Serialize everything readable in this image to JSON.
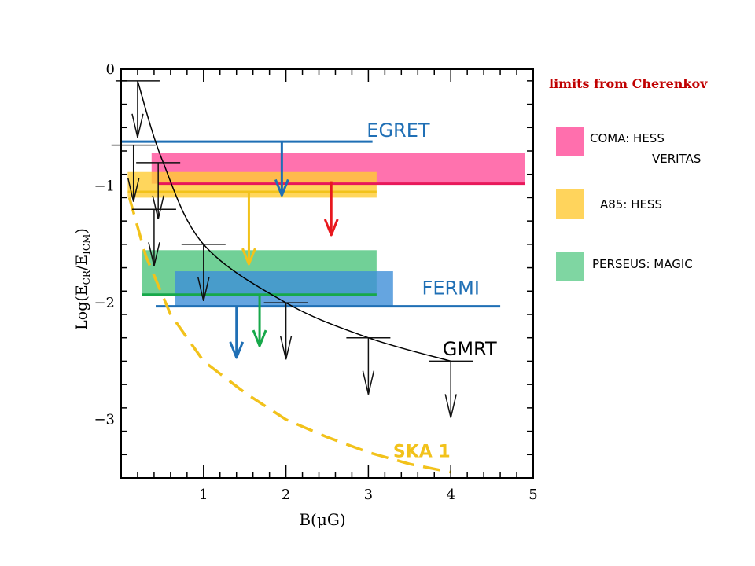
{
  "chart_data": {
    "type": "line",
    "title": "",
    "xlabel": "B(μG)",
    "ylabel": "Log(E_CR/E_ICM)",
    "ylabel_parts": [
      "Log(E",
      "CR",
      "/E",
      "ICM",
      ")"
    ],
    "xlim": [
      0.0,
      5.0
    ],
    "ylim": [
      -3.5,
      0.0
    ],
    "x_ticks": [
      1,
      2,
      3,
      4,
      5
    ],
    "y_ticks": [
      0,
      -1,
      -2,
      -3
    ],
    "x_tick_labels": [
      "1",
      "2",
      "3",
      "4",
      "5"
    ],
    "y_tick_labels": [
      "0",
      "−1",
      "−2",
      "−3"
    ],
    "series": [
      {
        "name": "GMRT",
        "color": "#000000",
        "x": [
          0.2,
          0.5,
          1.0,
          2.0,
          3.0,
          4.0
        ],
        "y": [
          -0.1,
          -0.78,
          -1.5,
          -2.0,
          -2.3,
          -2.5
        ]
      },
      {
        "name": "SKA 1",
        "color": "#f2c21b",
        "dashed": true,
        "x": [
          0.1,
          0.3,
          0.6,
          1.0,
          1.5,
          2.0,
          2.5,
          3.0,
          3.5,
          4.0
        ],
        "y": [
          -1.1,
          -1.6,
          -2.1,
          -2.5,
          -2.77,
          -3.0,
          -3.15,
          -3.28,
          -3.38,
          -3.45
        ]
      }
    ],
    "radio_upper_limits": [
      {
        "x": 0.15,
        "y": -0.65
      },
      {
        "x": 0.2,
        "y": -0.1
      },
      {
        "x": 0.4,
        "y": -1.2
      },
      {
        "x": 0.45,
        "y": -0.8
      },
      {
        "x": 1.0,
        "y": -1.5
      },
      {
        "x": 2.0,
        "y": -2.0
      },
      {
        "x": 3.0,
        "y": -2.3
      },
      {
        "x": 4.0,
        "y": -2.5
      }
    ],
    "gamma_limits": [
      {
        "name": "EGRET",
        "color": "#1f6fb5",
        "x_range": [
          0.0,
          3.05
        ],
        "y": -0.62,
        "arrow_x": 1.95,
        "arrow_to": -1.08
      },
      {
        "name": "FERMI",
        "color": "#1f6fb5",
        "x_range": [
          0.42,
          4.6
        ],
        "y": -2.03,
        "arrow_x": 1.4,
        "arrow_to": -2.47
      },
      {
        "name": "COMA: HESS VERITAS",
        "color": "#ff4f9a",
        "x_range": [
          0.37,
          4.9
        ],
        "y_range": [
          -0.72,
          -0.98
        ],
        "line_y": -0.98,
        "line_x_range": [
          0.45,
          4.9
        ],
        "line_color": "#e8185a",
        "arrow_x": 2.55,
        "arrow_from": -0.96,
        "arrow_to": -1.42,
        "arrow_color": "#e8181e"
      },
      {
        "name": "A85: HESS",
        "color": "#ffcc33",
        "x_range": [
          0.08,
          3.1
        ],
        "y_range": [
          -0.88,
          -1.1
        ],
        "line_y": -1.05,
        "line_x_range": [
          0.08,
          3.1
        ],
        "line_color": "#f2c21b",
        "arrow_x": 1.55,
        "arrow_from": -1.05,
        "arrow_to": -1.67,
        "arrow_color": "#f2c21b"
      },
      {
        "name": "PERSEUS: MAGIC",
        "color": "#4dc47d",
        "x_range": [
          0.25,
          3.1
        ],
        "y_range": [
          -1.55,
          -1.93
        ],
        "line_y": -1.93,
        "line_x_range": [
          0.25,
          3.1
        ],
        "line_color": "#17a84a",
        "arrow_x": 1.68,
        "arrow_from": -1.93,
        "arrow_to": -2.37,
        "arrow_color": "#17a84a"
      },
      {
        "name": "FERMI box",
        "color": "#3f8fd8",
        "x_range": [
          0.65,
          3.3
        ],
        "y_range": [
          -1.73,
          -2.03
        ]
      }
    ],
    "annotations": [
      {
        "text": "EGRET",
        "color": "#1f6fb5",
        "x": 2.98,
        "y": -0.58
      },
      {
        "text": "FERMI",
        "color": "#1f6fb5",
        "x": 3.65,
        "y": -1.93
      },
      {
        "text": "GMRT",
        "color": "#000000",
        "x": 3.9,
        "y": -2.45
      },
      {
        "text": "SKA 1",
        "color": "#f2c21b",
        "x": 3.3,
        "y": -3.32
      }
    ]
  },
  "legend": {
    "title": "limits from Cherenkov",
    "items": [
      {
        "label": "COMA: HESS",
        "label2": "VERITAS",
        "color": "#ff6fad"
      },
      {
        "label": "A85: HESS",
        "color": "#ffd45c"
      },
      {
        "label": "PERSEUS: MAGIC",
        "color": "#7fd6a2"
      }
    ]
  }
}
